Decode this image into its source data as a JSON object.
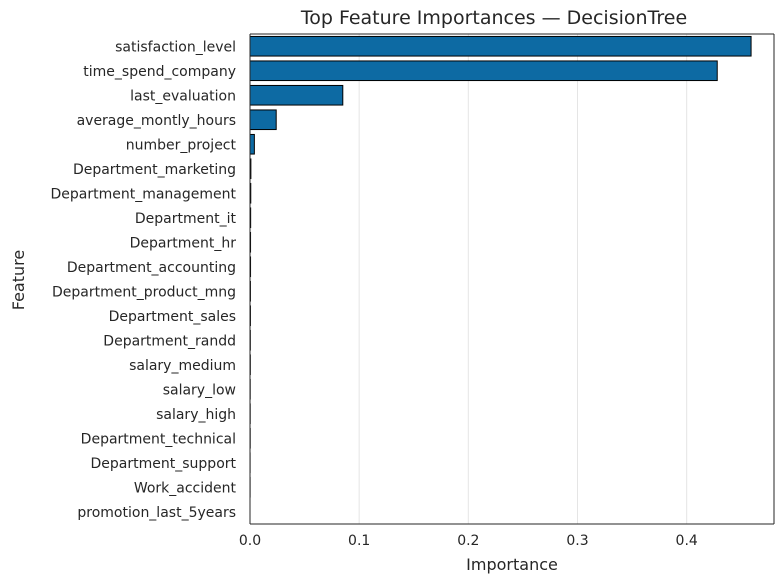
{
  "chart_data": {
    "type": "bar",
    "orientation": "horizontal",
    "title": "Top Feature Importances — DecisionTree",
    "xlabel": "Importance",
    "ylabel": "Feature",
    "xlim": [
      0,
      0.48
    ],
    "xticks": [
      0,
      0.1,
      0.2,
      0.3,
      0.4
    ],
    "xtick_labels": [
      "0.0",
      "0.1",
      "0.2",
      "0.3",
      "0.4"
    ],
    "grid": "vertical",
    "bar_color": "#1f77b4",
    "bar_fill": "#0d6aa3",
    "edge_color": "#000000",
    "categories": [
      "satisfaction_level",
      "time_spend_company",
      "last_evaluation",
      "average_montly_hours",
      "number_project",
      "Department_marketing",
      "Department_management",
      "Department_it",
      "Department_hr",
      "Department_accounting",
      "Department_product_mng",
      "Department_sales",
      "Department_randd",
      "salary_medium",
      "salary_low",
      "salary_high",
      "Department_technical",
      "Department_support",
      "Work_accident",
      "promotion_last_5years"
    ],
    "values": [
      0.459,
      0.428,
      0.085,
      0.024,
      0.004,
      0.0008,
      0.0007,
      0.0006,
      0.0005,
      0.0005,
      0.0004,
      0.0004,
      0.0003,
      0.0003,
      0.0002,
      0.0002,
      0.0002,
      0.0001,
      0.0001,
      0.0
    ]
  }
}
